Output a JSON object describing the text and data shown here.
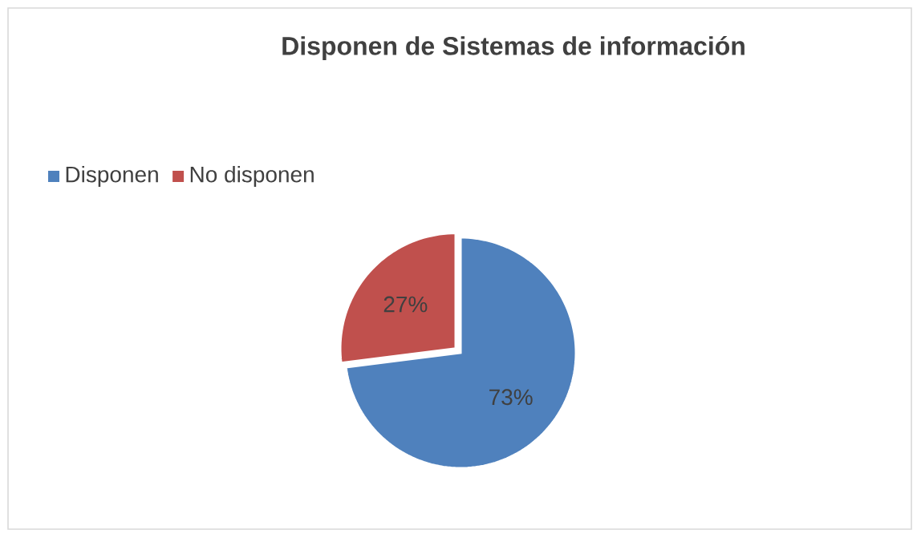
{
  "chart_data": {
    "type": "pie",
    "title": "Disponen de Sistemas de información",
    "categories": [
      "Disponen",
      "No disponen"
    ],
    "values": [
      73,
      27
    ],
    "value_labels": [
      "73%",
      "27%"
    ],
    "colors": [
      "#4f81bd",
      "#c0504d"
    ],
    "legend": "top left"
  }
}
